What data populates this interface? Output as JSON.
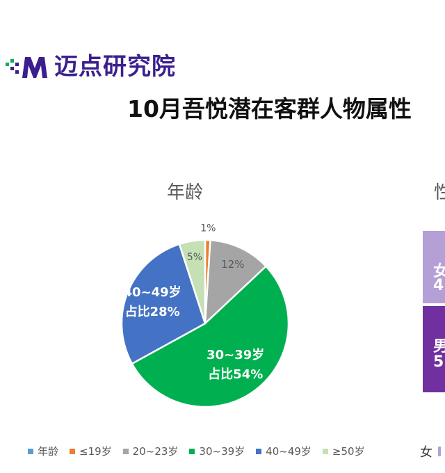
{
  "logo": {
    "text": "迈点研究院"
  },
  "page_title": "10月吾悦潜在客群人物属性",
  "colors": {
    "brand": "#3b1f8f",
    "age_legend": "#5b9bd5",
    "slice_19": "#ed7d31",
    "slice_20_23": "#a5a5a5",
    "slice_30_39": "#00b050",
    "slice_40_49": "#4472c4",
    "slice_50": "#c5e0b4",
    "female": "#b4a0d6",
    "male": "#7030a0"
  },
  "chart_data": [
    {
      "type": "pie",
      "title": "年龄",
      "categories": [
        "≤19岁",
        "20~23岁",
        "30~39岁",
        "40~49岁",
        "≥50岁"
      ],
      "values": [
        1,
        12,
        54,
        28,
        5
      ],
      "labels": [
        [
          "1%"
        ],
        [
          "12%"
        ],
        [
          "30~39岁",
          "占比54%"
        ],
        [
          "40~49岁",
          "占比28%"
        ],
        [
          "5%"
        ]
      ],
      "legend": [
        "年龄",
        "≤19岁",
        "20~23岁",
        "30~39岁",
        "40~49岁",
        "≥50岁"
      ],
      "legend_position": "bottom"
    },
    {
      "type": "bar",
      "title": "性",
      "categories": [
        "女",
        "男"
      ],
      "labels": [
        "女",
        "4",
        "男",
        "5"
      ],
      "legend": [
        "女"
      ],
      "note": "cropped at right edge"
    }
  ]
}
